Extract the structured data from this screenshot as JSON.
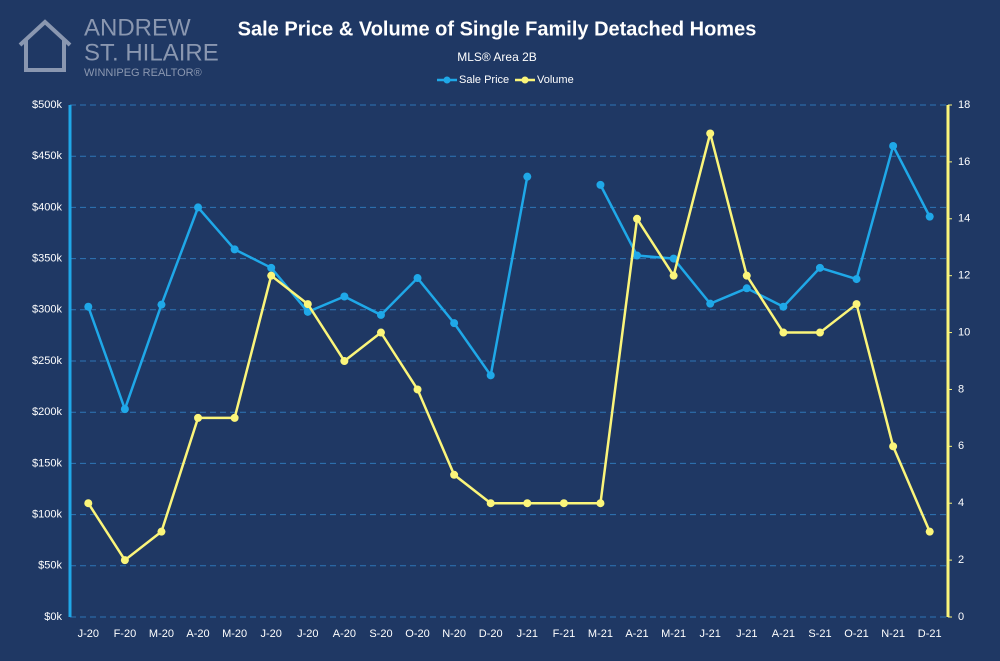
{
  "logo": [
    "ANDREW",
    "ST. HILAIRE",
    "WINNIPEG REALTOR®"
  ],
  "chart_data": {
    "type": "line",
    "title": "Sale Price & Volume of Single Family Detached Homes",
    "subtitle": "MLS® Area 2B",
    "categories": [
      "J-20",
      "F-20",
      "M-20",
      "A-20",
      "M-20",
      "J-20",
      "J-20",
      "A-20",
      "S-20",
      "O-20",
      "N-20",
      "D-20",
      "J-21",
      "F-21",
      "M-21",
      "A-21",
      "M-21",
      "J-21",
      "J-21",
      "A-21",
      "S-21",
      "O-21",
      "N-21",
      "D-21"
    ],
    "series": [
      {
        "name": "Sale Price",
        "color": "#1fa8e8",
        "values": [
          303000,
          203000,
          305000,
          400000,
          359000,
          341000,
          298000,
          313000,
          295000,
          331000,
          287000,
          236000,
          430000,
          null,
          422000,
          353000,
          350000,
          306000,
          321000,
          303000,
          341000,
          330000,
          460000,
          391000
        ]
      },
      {
        "name": "Volume",
        "color": "#fbf57a",
        "axis": "y2",
        "values": [
          4,
          2,
          3,
          7,
          7,
          12,
          11,
          9,
          10,
          8,
          5,
          4,
          4,
          4,
          4,
          14,
          12,
          17,
          12,
          10,
          10,
          11,
          6,
          3
        ]
      }
    ],
    "ylim": [
      0,
      500000
    ],
    "yticks": [
      {
        "value": 0,
        "label": "$0k"
      },
      {
        "value": 50000,
        "label": "$50k"
      },
      {
        "value": 100000,
        "label": "$100k"
      },
      {
        "value": 150000,
        "label": "$150k"
      },
      {
        "value": 200000,
        "label": "$200k"
      },
      {
        "value": 250000,
        "label": "$250k"
      },
      {
        "value": 300000,
        "label": "$300k"
      },
      {
        "value": 350000,
        "label": "$350k"
      },
      {
        "value": 400000,
        "label": "$400k"
      },
      {
        "value": 450000,
        "label": "$450k"
      },
      {
        "value": 500000,
        "label": "$500k"
      }
    ],
    "y2lim": [
      0,
      18
    ],
    "y2ticks": [
      0,
      2,
      4,
      6,
      8,
      10,
      12,
      14,
      16,
      18
    ],
    "grid": true,
    "legend": "top"
  }
}
